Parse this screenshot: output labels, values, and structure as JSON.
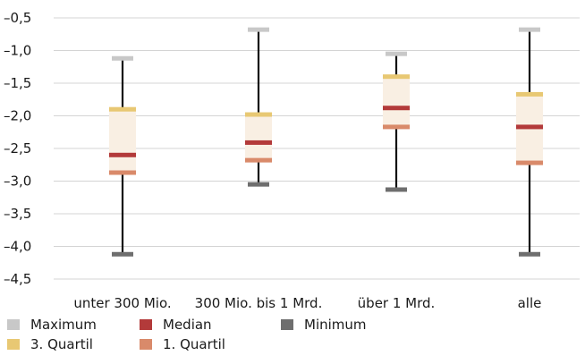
{
  "chart_data": {
    "type": "box",
    "categories": [
      "unter 300 Mio.",
      "300 Mio. bis 1 Mrd.",
      "über 1 Mrd.",
      "alle"
    ],
    "series": [
      {
        "name": "Maximum",
        "values": [
          -1.12,
          -0.68,
          -1.05,
          -0.68
        ],
        "color": "#c8c8c8"
      },
      {
        "name": "3. Quartil",
        "values": [
          -1.9,
          -1.98,
          -1.4,
          -1.67
        ],
        "color": "#e8c873"
      },
      {
        "name": "Median",
        "values": [
          -2.6,
          -2.41,
          -1.88,
          -2.17
        ],
        "color": "#b33a3a"
      },
      {
        "name": "1. Quartil",
        "values": [
          -2.87,
          -2.68,
          -2.17,
          -2.72
        ],
        "color": "#d98a6a"
      },
      {
        "name": "Minimum",
        "values": [
          -4.12,
          -3.05,
          -3.13,
          -4.12
        ],
        "color": "#6e6e6e"
      }
    ],
    "ylim": [
      -4.5,
      -0.5
    ],
    "yticks": [
      "–0,5",
      "–1,0",
      "–1,5",
      "–2,0",
      "–2,5",
      "–3,0",
      "–3,5",
      "–4,0",
      "–4,5"
    ],
    "ytick_values": [
      -0.5,
      -1.0,
      -1.5,
      -2.0,
      -2.5,
      -3.0,
      -3.5,
      -4.0,
      -4.5
    ],
    "grid": true,
    "box_fill": "#f9efe3",
    "legend_position": "bottom-left"
  }
}
